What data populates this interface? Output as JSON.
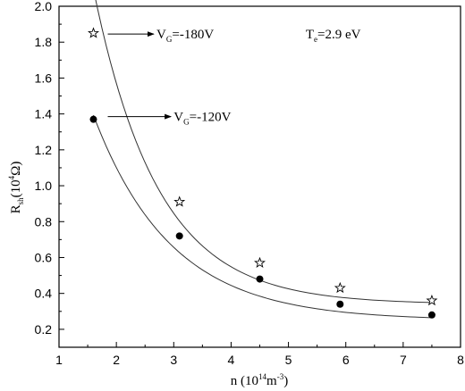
{
  "chart_data": {
    "type": "scatter",
    "xlabel": {
      "base": "n",
      "open": "(10",
      "sup": "14",
      "unit": "m",
      "unit_sup": "-3",
      "close": ")"
    },
    "ylabel": {
      "base": "R",
      "sub": "sh",
      "open": "(10",
      "sup": "4",
      "unit": "Ω)"
    },
    "xlim": [
      1,
      8
    ],
    "ylim": [
      0.1,
      2.0
    ],
    "xticks": [
      "1",
      "2",
      "3",
      "4",
      "5",
      "6",
      "7",
      "8"
    ],
    "yticks": [
      "0.2",
      "0.4",
      "0.6",
      "0.8",
      "1.0",
      "1.2",
      "1.4",
      "1.6",
      "1.8",
      "2.0"
    ],
    "grid": false,
    "series": [
      {
        "name": "V_G=-180V",
        "marker": "open-star",
        "x": [
          1.6,
          3.1,
          4.5,
          5.9,
          7.5
        ],
        "y": [
          1.85,
          0.91,
          0.57,
          0.43,
          0.36
        ],
        "fit": {
          "a": 1.755,
          "b": 0.888,
          "c": 0.34
        }
      },
      {
        "name": "V_G=-120V",
        "marker": "filled-circle",
        "x": [
          1.6,
          3.1,
          4.5,
          5.9,
          7.5
        ],
        "y": [
          1.37,
          0.72,
          0.48,
          0.34,
          0.28
        ],
        "fit": {
          "a": 1.143,
          "b": 0.738,
          "c": 0.25
        }
      }
    ],
    "annotations": [
      {
        "series": 0,
        "base": "V",
        "sub": "G",
        "text": "=-180V",
        "arrow_from": [
          1.85,
          1.845
        ],
        "arrow_to": [
          2.65,
          1.845
        ],
        "label_at": [
          2.7,
          1.845
        ]
      },
      {
        "series": 1,
        "base": "V",
        "sub": "G",
        "text": "=-120V",
        "arrow_from": [
          1.85,
          1.385
        ],
        "arrow_to": [
          2.95,
          1.385
        ],
        "label_at": [
          3.0,
          1.385
        ]
      },
      {
        "base": "T",
        "sub": "e",
        "text": "=2.9 eV",
        "label_at": [
          5.3,
          1.845
        ]
      }
    ]
  }
}
